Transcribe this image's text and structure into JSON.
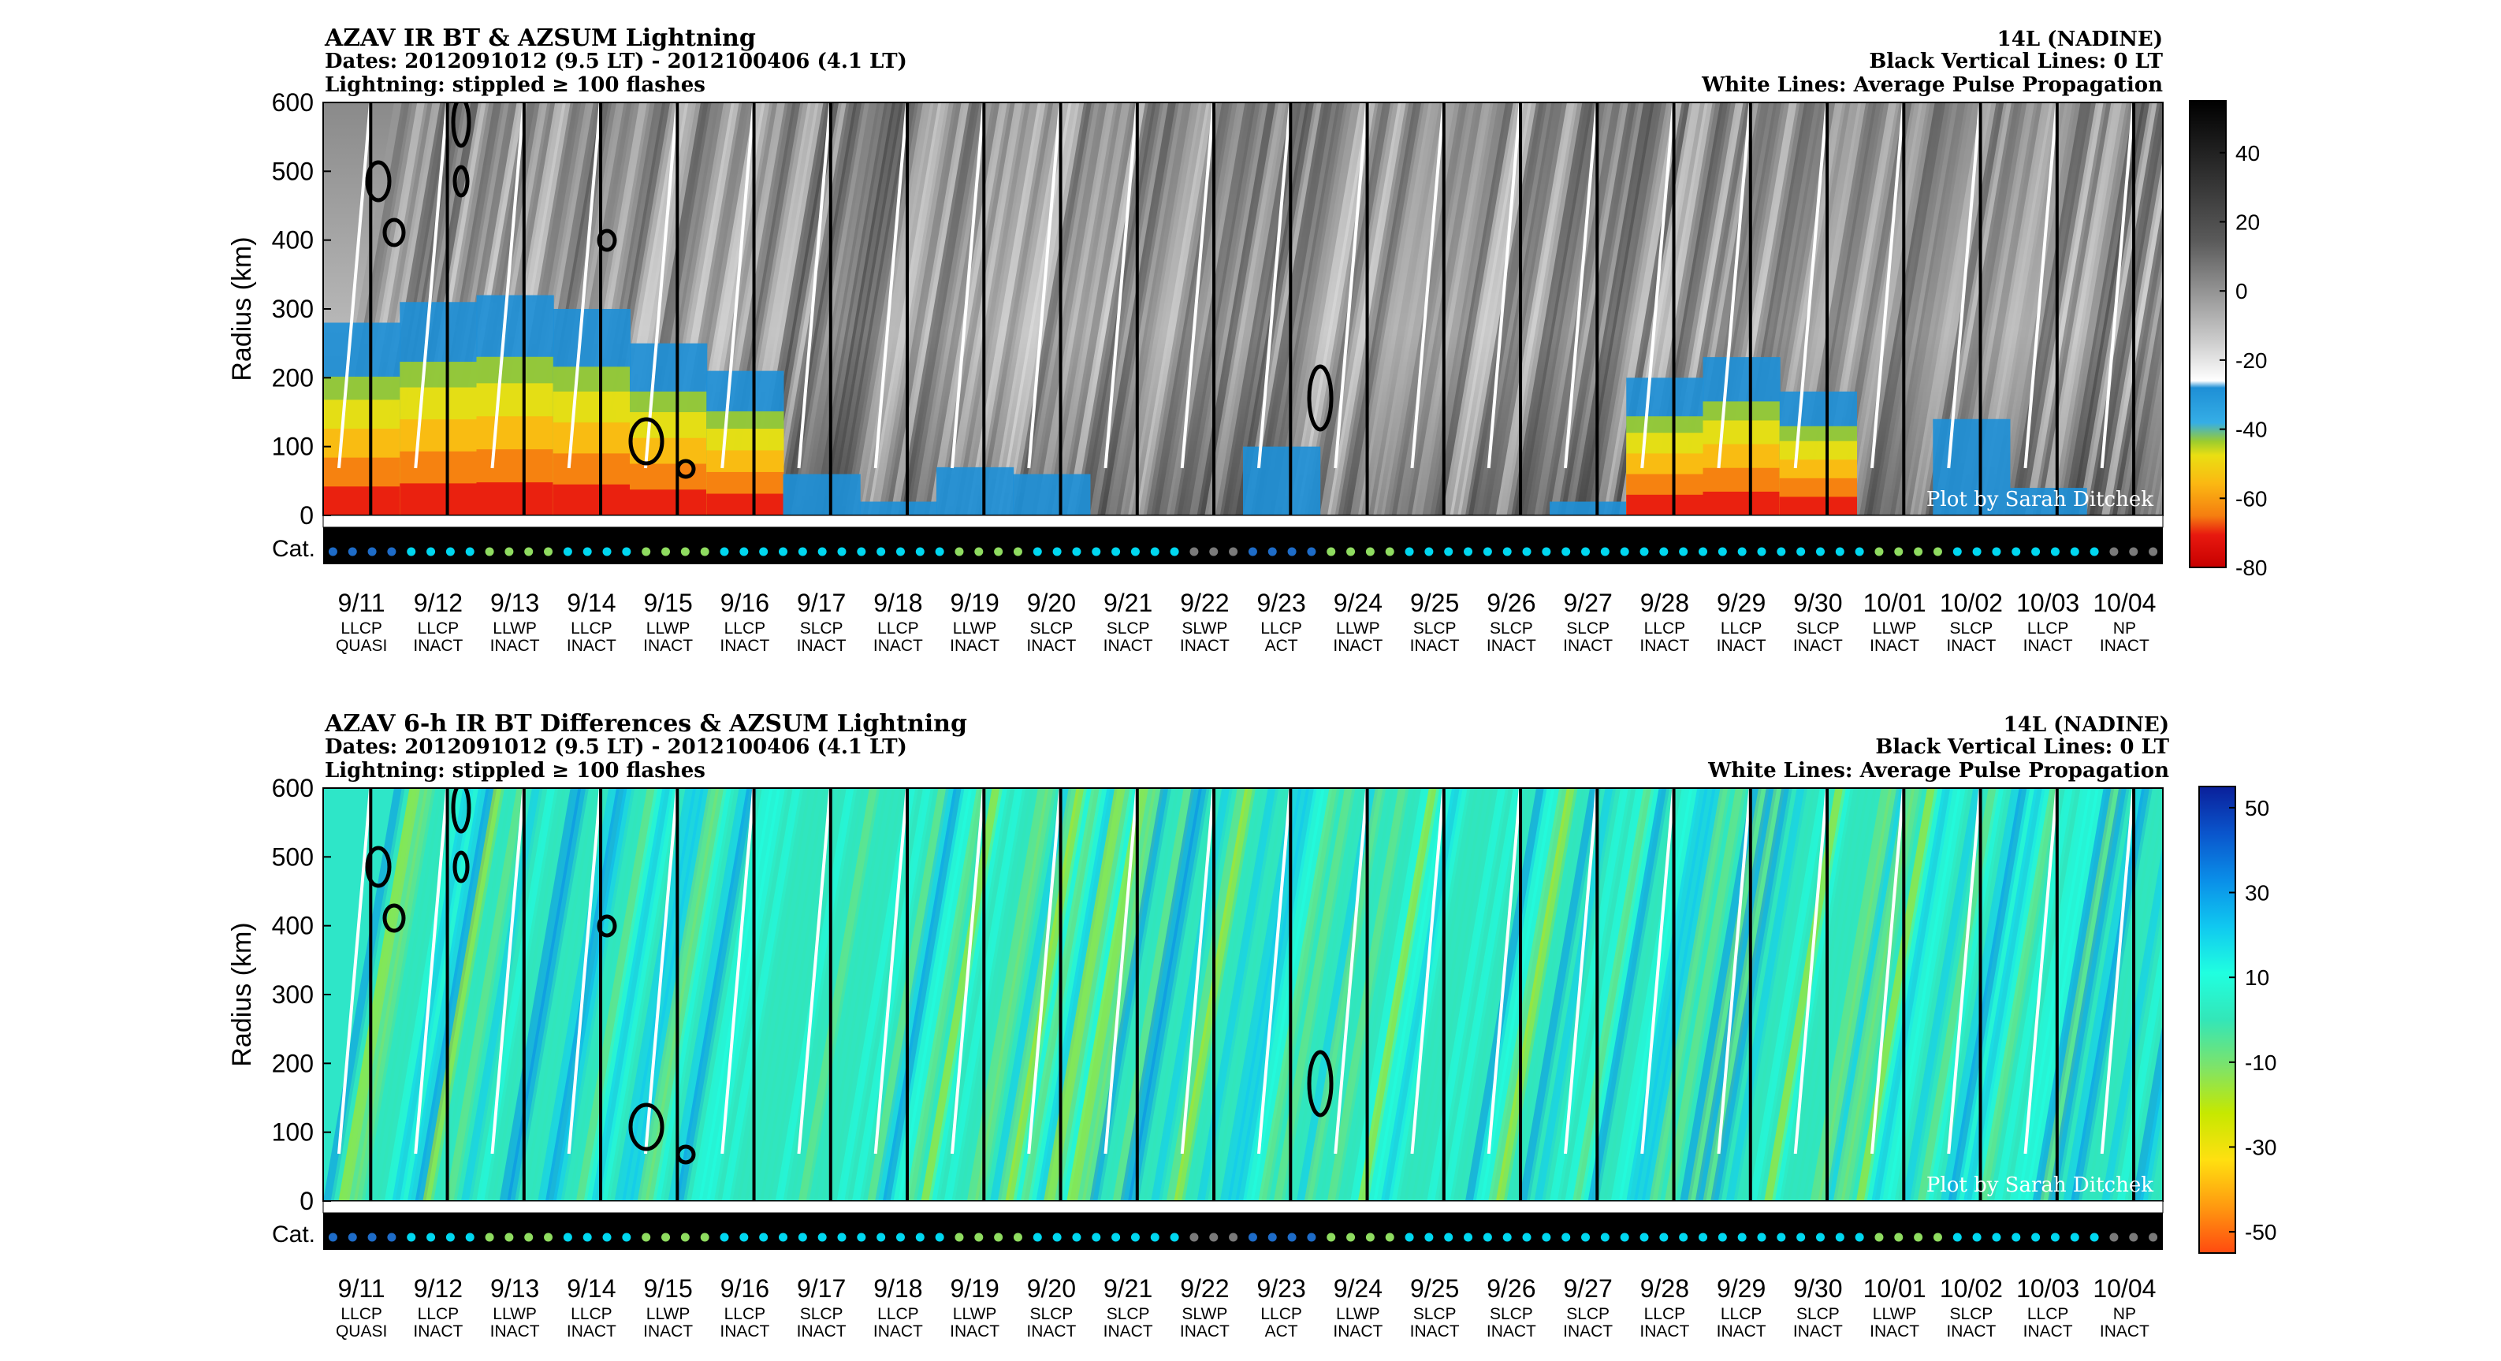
{
  "colors": {
    "bt_colorbar": [
      "#fdfdfd",
      "#d6d6d6",
      "#a8a8a8",
      "#7a7a7a",
      "#4e4e4e",
      "#1f1f1f",
      "#000000"
    ],
    "bt_cold": [
      "#1e8fd6",
      "#2fa6e3",
      "#9ccc2e",
      "#eadf12",
      "#fbb812",
      "#f57d10",
      "#e8190f"
    ],
    "diff_colorbar": [
      "#ff4a10",
      "#ff9a10",
      "#ffe010",
      "#c6e800",
      "#7de36a",
      "#33e6b8",
      "#20ffe0",
      "#10c8f0",
      "#0a8ee8",
      "#0a55cc",
      "#0a1f9a"
    ],
    "category": {
      "QUASI": "#1e6cc8",
      "INACT": "#00d7f0",
      "ACT": "#1e6cc8",
      "LLWP": "#8fdc60",
      "NP": "#7a7a7a",
      "SLWP": "#7a7a7a"
    }
  },
  "days": [
    {
      "date": "9/11",
      "cat": "LLCP",
      "state": "QUASI"
    },
    {
      "date": "9/12",
      "cat": "LLCP",
      "state": "INACT"
    },
    {
      "date": "9/13",
      "cat": "LLWP",
      "state": "INACT"
    },
    {
      "date": "9/14",
      "cat": "LLCP",
      "state": "INACT"
    },
    {
      "date": "9/15",
      "cat": "LLWP",
      "state": "INACT"
    },
    {
      "date": "9/16",
      "cat": "LLCP",
      "state": "INACT"
    },
    {
      "date": "9/17",
      "cat": "SLCP",
      "state": "INACT"
    },
    {
      "date": "9/18",
      "cat": "LLCP",
      "state": "INACT"
    },
    {
      "date": "9/19",
      "cat": "LLWP",
      "state": "INACT"
    },
    {
      "date": "9/20",
      "cat": "SLCP",
      "state": "INACT"
    },
    {
      "date": "9/21",
      "cat": "SLCP",
      "state": "INACT"
    },
    {
      "date": "9/22",
      "cat": "SLWP",
      "state": "INACT"
    },
    {
      "date": "9/23",
      "cat": "LLCP",
      "state": "ACT"
    },
    {
      "date": "9/24",
      "cat": "LLWP",
      "state": "INACT"
    },
    {
      "date": "9/25",
      "cat": "SLCP",
      "state": "INACT"
    },
    {
      "date": "9/26",
      "cat": "SLCP",
      "state": "INACT"
    },
    {
      "date": "9/27",
      "cat": "SLCP",
      "state": "INACT"
    },
    {
      "date": "9/28",
      "cat": "LLCP",
      "state": "INACT"
    },
    {
      "date": "9/29",
      "cat": "LLCP",
      "state": "INACT"
    },
    {
      "date": "9/30",
      "cat": "SLCP",
      "state": "INACT"
    },
    {
      "date": "10/01",
      "cat": "LLWP",
      "state": "INACT"
    },
    {
      "date": "10/02",
      "cat": "SLCP",
      "state": "INACT"
    },
    {
      "date": "10/03",
      "cat": "LLCP",
      "state": "INACT"
    },
    {
      "date": "10/04",
      "cat": "NP",
      "state": "INACT"
    }
  ],
  "chart_data": [
    {
      "type": "heatmap",
      "title": "AZAV IR BT & AZSUM Lightning",
      "subtitle_dates": "Dates: 2012091012 (9.5 LT) - 2012100406 (4.1 LT)",
      "subtitle_lightning": "Lightning: stippled ≥ 100 flashes",
      "storm": "14L (NADINE)",
      "note_black": "Black Vertical Lines: 0 LT",
      "note_white": "White Lines: Average Pulse Propagation",
      "ylabel": "Radius (km)",
      "cat_label": "Cat.",
      "watermark": "Plot by Sarah Ditchek",
      "ylim": [
        0,
        600
      ],
      "yticks": [
        "0",
        "100",
        "200",
        "300",
        "400",
        "500",
        "600"
      ],
      "colorbar_ticks": [
        "40",
        "20",
        "0",
        "-20",
        "-40",
        "-60",
        "-80"
      ],
      "colorbar_range": [
        -80,
        55
      ],
      "grid": false,
      "cold_cloud_extent_km": [
        {
          "date": "9/11",
          "radius": 280
        },
        {
          "date": "9/12",
          "radius": 310
        },
        {
          "date": "9/13",
          "radius": 320
        },
        {
          "date": "9/14",
          "radius": 300
        },
        {
          "date": "9/15",
          "radius": 250
        },
        {
          "date": "9/16",
          "radius": 210
        },
        {
          "date": "9/17",
          "radius": 60
        },
        {
          "date": "9/18",
          "radius": 20
        },
        {
          "date": "9/19",
          "radius": 70
        },
        {
          "date": "9/20",
          "radius": 60
        },
        {
          "date": "9/21",
          "radius": 0
        },
        {
          "date": "9/22",
          "radius": 0
        },
        {
          "date": "9/23",
          "radius": 100
        },
        {
          "date": "9/24",
          "radius": 0
        },
        {
          "date": "9/25",
          "radius": 0
        },
        {
          "date": "9/26",
          "radius": 0
        },
        {
          "date": "9/27",
          "radius": 20
        },
        {
          "date": "9/28",
          "radius": 200
        },
        {
          "date": "9/29",
          "radius": 230
        },
        {
          "date": "9/30",
          "radius": 180
        },
        {
          "date": "10/01",
          "radius": 0
        },
        {
          "date": "10/02",
          "radius": 140
        },
        {
          "date": "10/03",
          "radius": 40
        },
        {
          "date": "10/04",
          "radius": 0
        }
      ]
    },
    {
      "type": "heatmap",
      "title": "AZAV 6-h IR BT Differences & AZSUM Lightning",
      "subtitle_dates": "Dates: 2012091012 (9.5 LT) - 2012100406 (4.1 LT)",
      "subtitle_lightning": "Lightning: stippled ≥ 100 flashes",
      "storm": "14L (NADINE)",
      "note_black": "Black Vertical Lines: 0 LT",
      "note_white": "White Lines: Average Pulse Propagation",
      "ylabel": "Radius (km)",
      "cat_label": "Cat.",
      "watermark": "Plot by Sarah Ditchek",
      "ylim": [
        0,
        600
      ],
      "yticks": [
        "0",
        "100",
        "200",
        "300",
        "400",
        "500",
        "600"
      ],
      "colorbar_ticks": [
        "50",
        "30",
        "10",
        "-10",
        "-30",
        "-50"
      ],
      "colorbar_range": [
        -55,
        55
      ],
      "grid": false
    }
  ]
}
